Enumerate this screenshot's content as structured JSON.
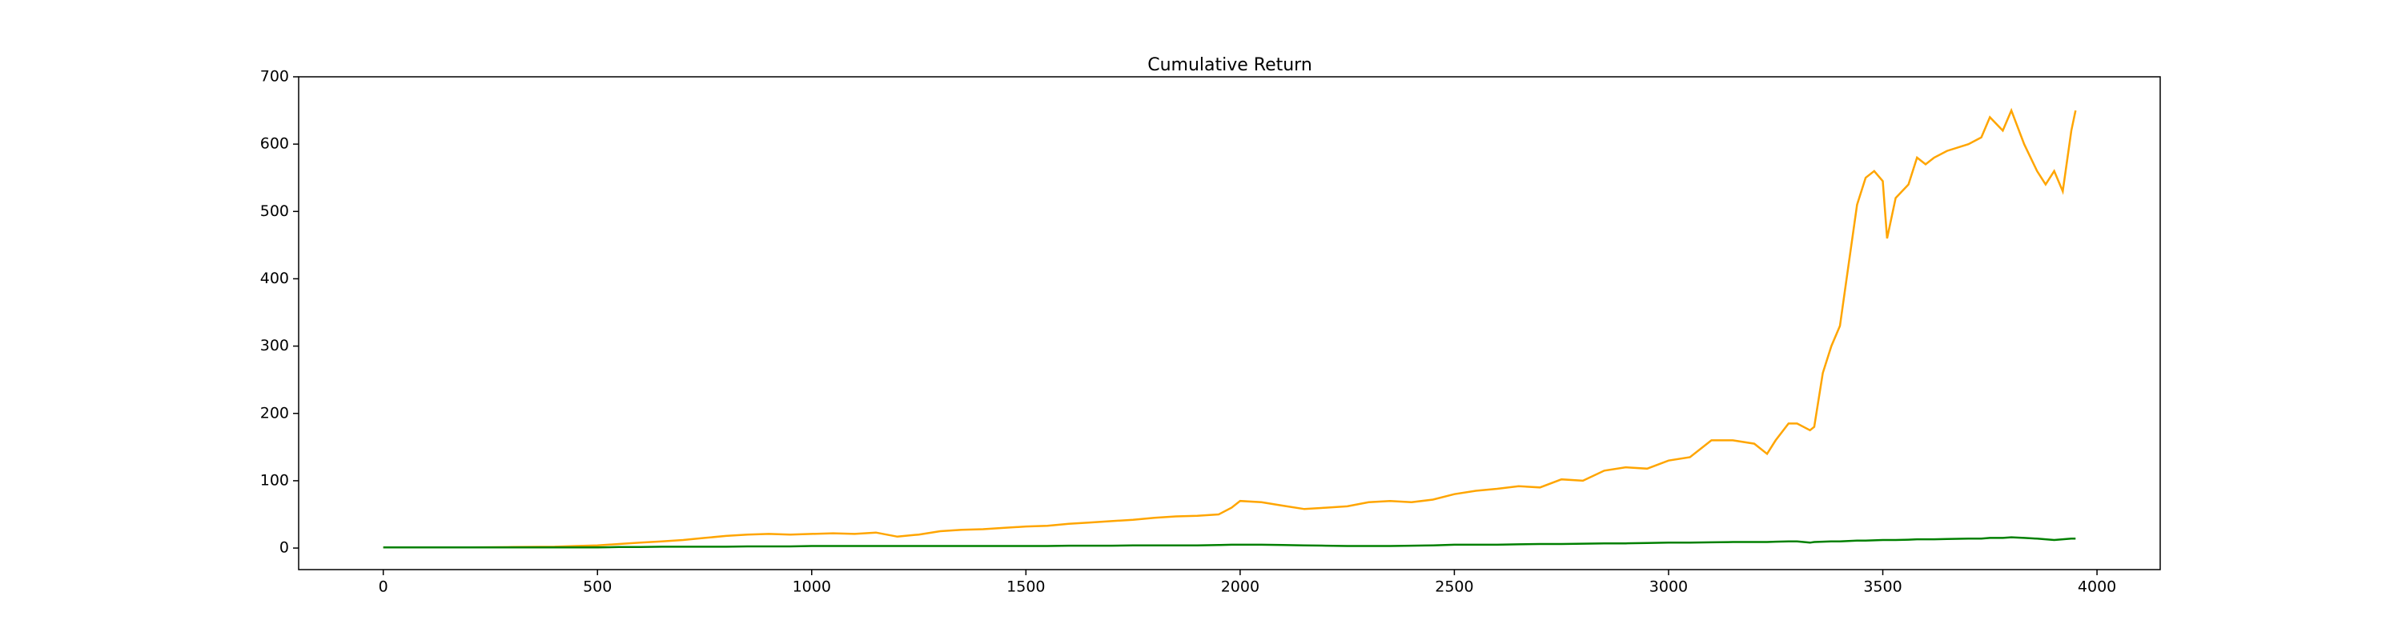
{
  "chart_data": {
    "type": "line",
    "title": "Cumulative Return",
    "x": [
      0,
      100,
      200,
      300,
      400,
      450,
      500,
      550,
      600,
      650,
      700,
      750,
      800,
      850,
      900,
      950,
      1000,
      1050,
      1100,
      1150,
      1200,
      1250,
      1300,
      1350,
      1400,
      1450,
      1500,
      1550,
      1600,
      1650,
      1700,
      1750,
      1800,
      1850,
      1900,
      1950,
      1980,
      2000,
      2050,
      2100,
      2150,
      2200,
      2250,
      2300,
      2350,
      2400,
      2450,
      2500,
      2550,
      2600,
      2650,
      2700,
      2750,
      2800,
      2850,
      2900,
      2950,
      3000,
      3050,
      3100,
      3150,
      3200,
      3230,
      3250,
      3280,
      3300,
      3330,
      3340,
      3360,
      3380,
      3400,
      3420,
      3440,
      3460,
      3480,
      3500,
      3510,
      3530,
      3560,
      3580,
      3600,
      3620,
      3650,
      3700,
      3730,
      3750,
      3780,
      3800,
      3830,
      3860,
      3880,
      3900,
      3920,
      3940,
      3950
    ],
    "series": [
      {
        "color": "orange",
        "values": [
          1,
          1,
          1,
          1.5,
          2,
          3,
          4,
          6,
          8,
          10,
          12,
          15,
          18,
          20,
          21,
          20,
          21,
          22,
          21,
          23,
          17,
          20,
          25,
          27,
          28,
          30,
          32,
          33,
          36,
          38,
          40,
          42,
          45,
          47,
          48,
          50,
          60,
          70,
          68,
          63,
          58,
          60,
          62,
          68,
          70,
          68,
          72,
          80,
          85,
          88,
          92,
          90,
          102,
          100,
          115,
          120,
          118,
          130,
          135,
          160,
          160,
          155,
          140,
          160,
          185,
          185,
          175,
          180,
          260,
          300,
          330,
          420,
          510,
          550,
          560,
          545,
          460,
          520,
          540,
          580,
          570,
          580,
          590,
          600,
          610,
          640,
          620,
          650,
          600,
          560,
          540,
          560,
          530,
          620,
          650
        ]
      },
      {
        "color": "green",
        "values": [
          1,
          1,
          1,
          1,
          1,
          1,
          1,
          1.5,
          1.5,
          2,
          2,
          2,
          2,
          2.5,
          2.5,
          2.5,
          3,
          3,
          3,
          3,
          3,
          3,
          3,
          3,
          3,
          3,
          3,
          3,
          3.5,
          3.5,
          3.5,
          4,
          4,
          4,
          4,
          4.5,
          5,
          5,
          5,
          4.5,
          4,
          3.5,
          3,
          3,
          3,
          3.5,
          4,
          5,
          5,
          5,
          5.5,
          6,
          6,
          6.5,
          7,
          7,
          7.5,
          8,
          8,
          8.5,
          9,
          9,
          9,
          9.5,
          10,
          10,
          8,
          9,
          9.5,
          10,
          10,
          10.5,
          11,
          11,
          11.5,
          12,
          12,
          12,
          12.5,
          13,
          13,
          13,
          13.5,
          14,
          14,
          15,
          15,
          16,
          15,
          14,
          13,
          12,
          13,
          14,
          14
        ]
      }
    ],
    "xlim": [
      -197.5,
      4147.5
    ],
    "xticks": [
      0,
      500,
      1000,
      1500,
      2000,
      2500,
      3000,
      3500,
      4000
    ],
    "ylim": [
      -32,
      700
    ],
    "yticks": [
      0,
      100,
      200,
      300,
      400,
      500,
      600,
      700
    ]
  }
}
